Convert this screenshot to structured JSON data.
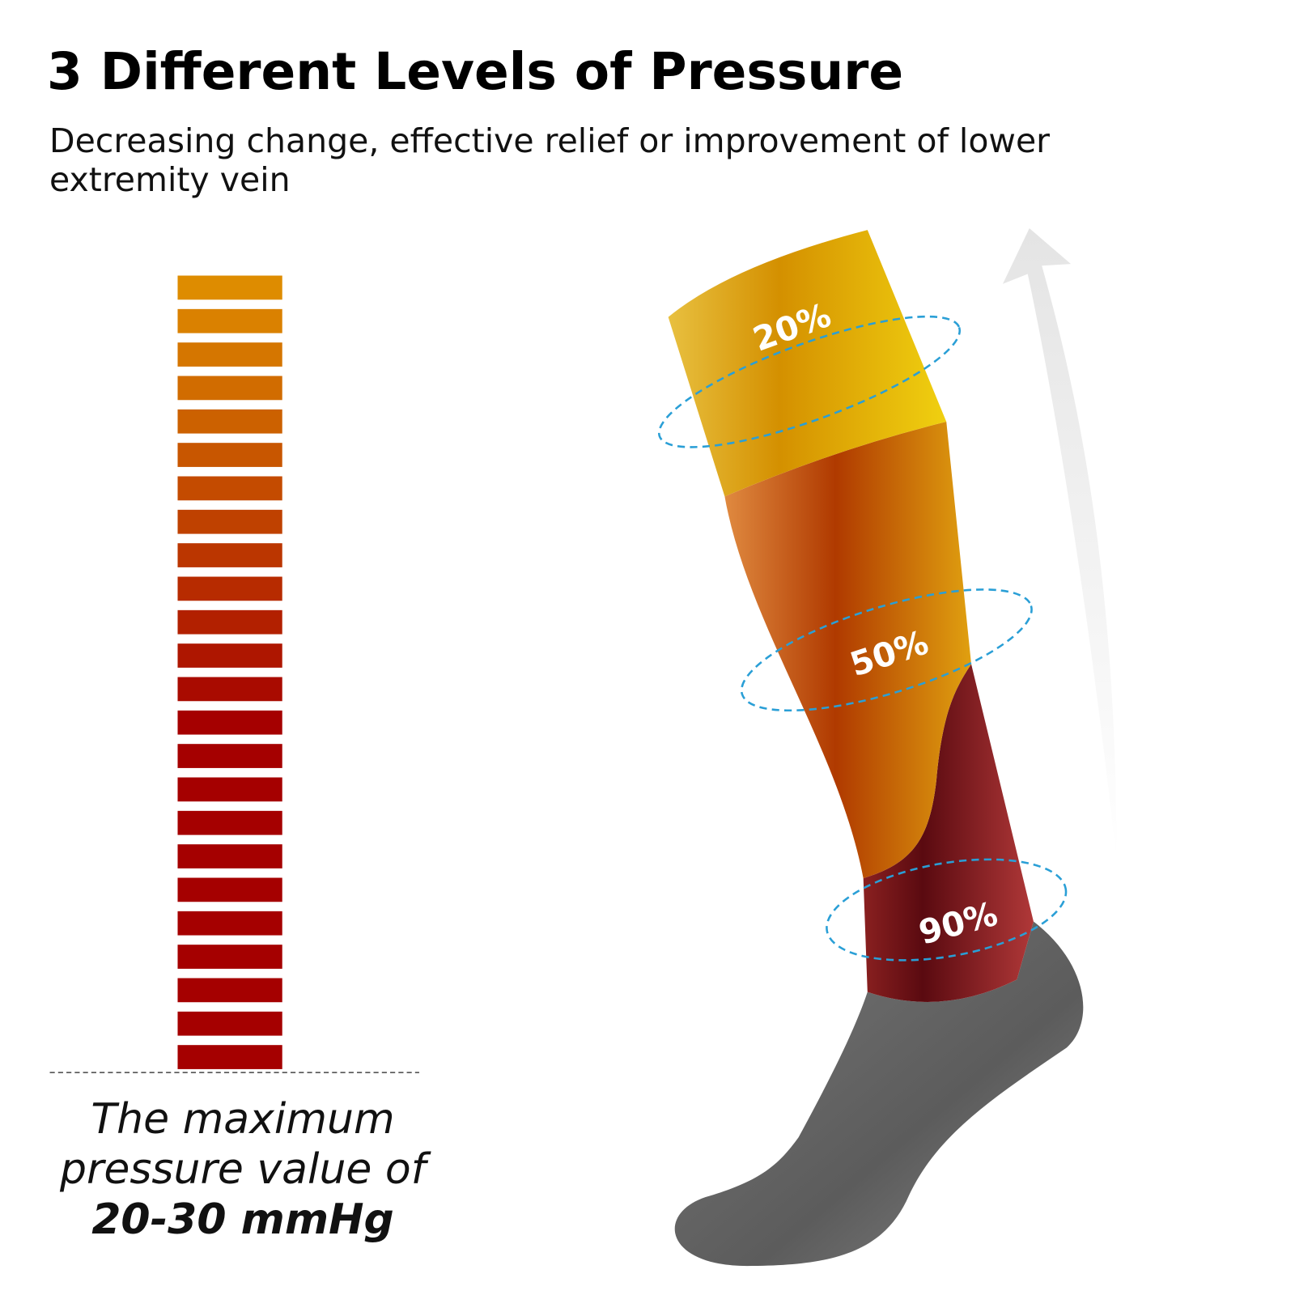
{
  "header": {
    "title": "3 Different Levels of Pressure",
    "subtitle": "Decreasing change, effective relief or improvement of lower extremity vein"
  },
  "gauge": {
    "caption": "The maximum pressure value of",
    "value": "20-30 mmHg"
  },
  "sock": {
    "labels": [
      "20%",
      "50%",
      "90%"
    ]
  }
}
